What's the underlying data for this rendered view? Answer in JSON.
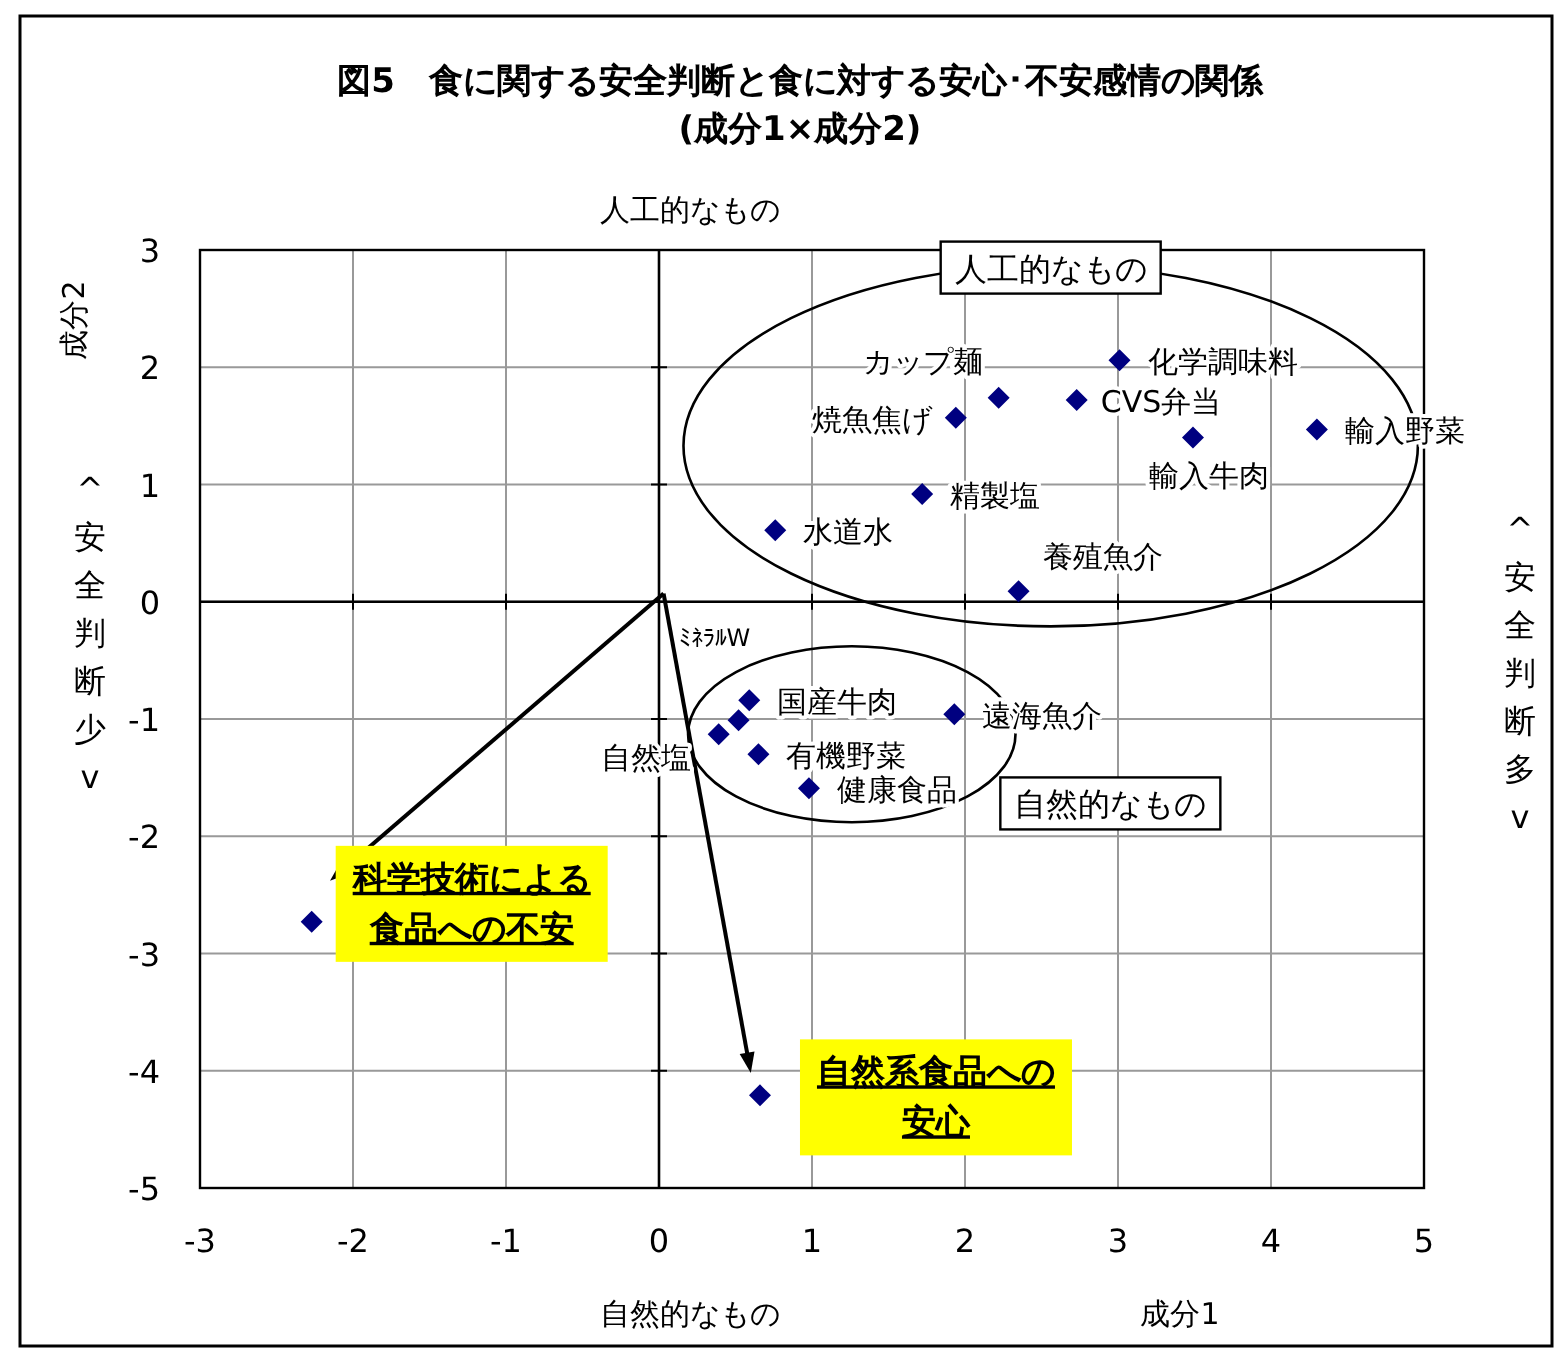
{
  "chart_data": {
    "type": "scatter",
    "title": "図5　食に関する安全判断と食に対する安心･不安感情の関係",
    "subtitle": "(成分1×成分2)",
    "xlabel": "成分1",
    "ylabel": "成分2",
    "xlim": [
      -3,
      5
    ],
    "xticks": [
      -3,
      -2,
      -1,
      0,
      1,
      2,
      3,
      4,
      5
    ],
    "ylim": [
      -5,
      3
    ],
    "yticks": [
      -5,
      -4,
      -3,
      -2,
      -1,
      0,
      1,
      2,
      3
    ],
    "grid": true,
    "marker": "diamond",
    "series": [
      {
        "color": "#000080",
        "x": [
          3.01,
          2.73,
          2.22,
          1.94,
          3.49,
          4.3,
          1.72,
          0.76,
          2.35,
          0.59,
          0.52,
          0.39,
          0.65,
          0.98,
          1.93,
          -2.27,
          0.66
        ],
        "values": [
          2.06,
          1.72,
          1.74,
          1.57,
          1.4,
          1.47,
          0.92,
          0.61,
          0.09,
          -0.84,
          -1.01,
          -1.13,
          -1.3,
          -1.59,
          -0.96,
          -2.73,
          -4.21
        ]
      }
    ],
    "annotations": [
      "人工的なもの",
      "自然的なもの",
      "^安全判断少v",
      "^安全判断多v",
      "人工的なもの",
      "自然的なもの",
      {
        "text": "化学調味料",
        "x": 3.01,
        "y": 2.06
      },
      {
        "text": "CVS弁当",
        "x": 2.73,
        "y": 1.72
      },
      {
        "text": "カップ麺",
        "x": 2.22,
        "y": 1.74
      },
      {
        "text": "焼魚焦げ",
        "x": 1.94,
        "y": 1.57
      },
      {
        "text": "輸入牛肉",
        "x": 3.49,
        "y": 1.4
      },
      {
        "text": "輸入野菜",
        "x": 4.3,
        "y": 1.47
      },
      {
        "text": "精製塩",
        "x": 1.72,
        "y": 0.92
      },
      {
        "text": "水道水",
        "x": 0.76,
        "y": 0.61
      },
      {
        "text": "養殖魚介",
        "x": 2.35,
        "y": 0.09
      },
      {
        "text": "国産牛肉",
        "x": 0.59,
        "y": -0.84
      },
      {
        "text": "ﾐﾈﾗﾙW",
        "x": 0.52,
        "y": -1.01
      },
      {
        "text": "自然塩",
        "x": 0.39,
        "y": -1.13
      },
      {
        "text": "有機野菜",
        "x": 0.65,
        "y": -1.3
      },
      {
        "text": "健康食品",
        "x": 0.98,
        "y": -1.59
      },
      {
        "text": "遠海魚介",
        "x": 1.93,
        "y": -0.96
      },
      {
        "text": "科学技術による食品への不安",
        "x": -2.27,
        "y": -2.73
      },
      {
        "text": "自然系食品への安心",
        "x": 0.66,
        "y": -4.21
      }
    ]
  }
}
